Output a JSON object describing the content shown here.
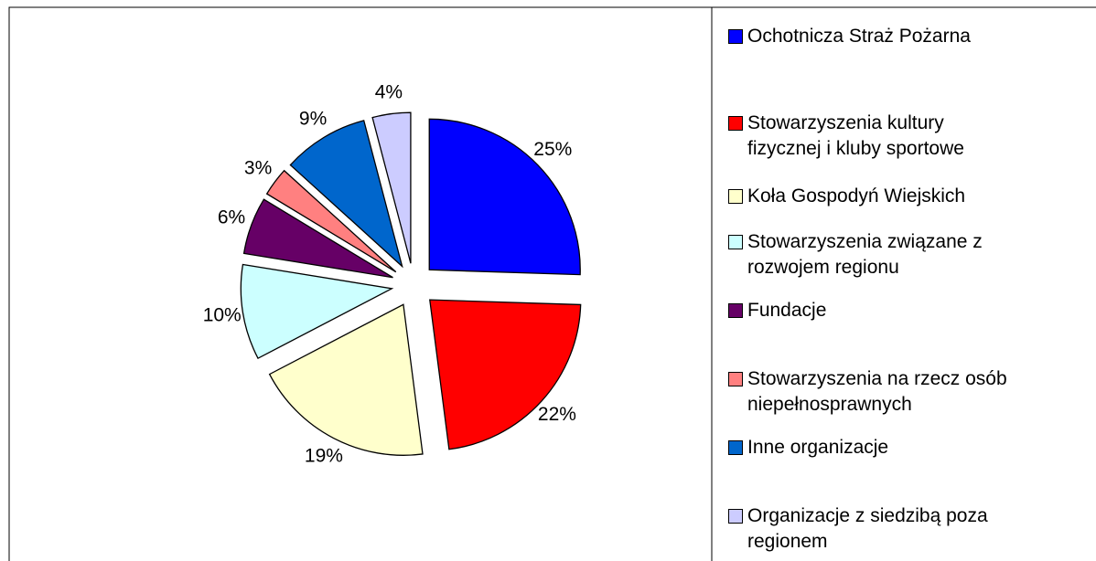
{
  "chart_data": {
    "type": "pie",
    "categories": [
      "Ochotnicza Straż Pożarna",
      "Stowarzyszenia kultury\nfizycznej i kluby sportowe",
      "Koła Gospodyń Wiejskich",
      "Stowarzyszenia związane z\nrozwojem regionu",
      "Fundacje",
      "Stowarzyszenia na rzecz osób\nniepełnosprawnych",
      "Inne organizacje",
      "Organizacje z siedzibą poza\nregionem"
    ],
    "values": [
      25,
      22,
      19,
      10,
      6,
      3,
      9,
      4
    ],
    "value_labels": [
      "25%",
      "22%",
      "19%",
      "10%",
      "6%",
      "3%",
      "9%",
      "4%"
    ],
    "colors": [
      "#0000ff",
      "#ff0000",
      "#ffffcc",
      "#ccffff",
      "#660066",
      "#ff8080",
      "#0066cc",
      "#ccccff"
    ],
    "legend": "right"
  }
}
